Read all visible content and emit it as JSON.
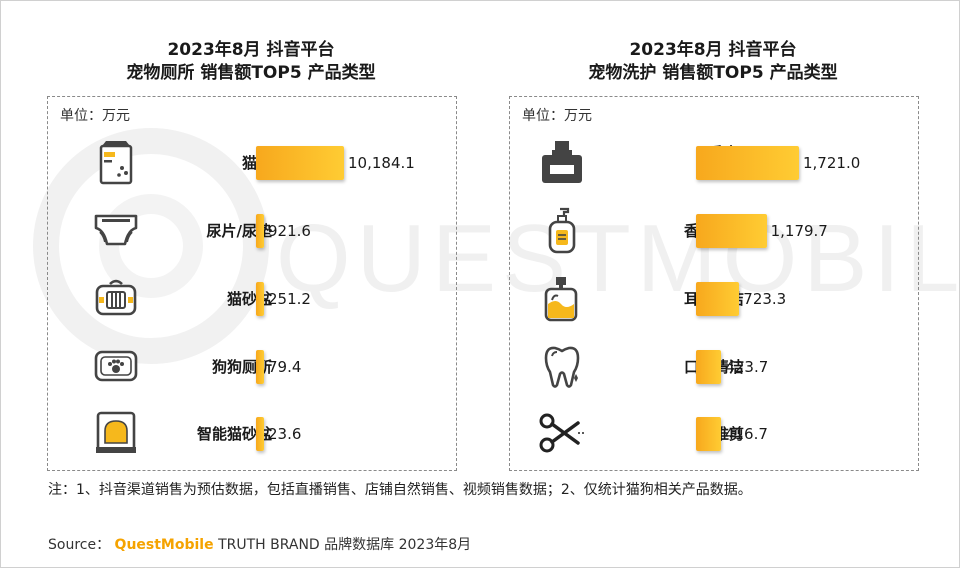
{
  "source": {
    "prefix": "Source：",
    "brand": "QuestMobile",
    "rest": "TRUTH BRAND 品牌数据库 2023年8月"
  },
  "note": "注：1、抖音渠道销售为预估数据，包括直播销售、店铺自然销售、视频销售数据；2、仅统计猫狗相关产品数据。",
  "watermark": "QUESTMOBILE",
  "colors": {
    "bar_start": "#f7a81d",
    "bar_end": "#ffcc33",
    "brand": "#f5a300"
  },
  "chart_data": [
    {
      "type": "bar",
      "orientation": "horizontal",
      "title_line1": "2023年8月 抖音平台",
      "title_line2": "宠物厕所 销售额TOP5 产品类型",
      "unit": "单位：万元",
      "categories": [
        "猫砂",
        "尿片/尿垫",
        "猫砂盆",
        "狗狗厕所",
        "智能猫砂盆"
      ],
      "values": [
        10184.1,
        921.6,
        251.2,
        79.4,
        23.6
      ],
      "value_labels": [
        "10,184.1",
        "921.6",
        "251.2",
        "79.4",
        "23.6"
      ],
      "icons": [
        "cat-litter-bag-icon",
        "diaper-icon",
        "pet-carrier-icon",
        "dog-toilet-icon",
        "smart-litter-box-icon"
      ]
    },
    {
      "type": "bar",
      "orientation": "horizontal",
      "title_line1": "2023年8月 抖音平台",
      "title_line2": "宠物洗护 销售额TOP5 产品类型",
      "unit": "单位：万元",
      "categories": [
        "香水/除味剂",
        "香波浴液",
        "耳部清洁",
        "口腔清洁",
        "电推剪"
      ],
      "category_lines": [
        [
          "香水/",
          "除味剂"
        ],
        [
          "香波浴液"
        ],
        [
          "耳部清洁"
        ],
        [
          "口腔清洁"
        ],
        [
          "电推剪"
        ]
      ],
      "values": [
        1721.0,
        1179.7,
        723.3,
        423.7,
        416.7
      ],
      "value_labels": [
        "1,721.0",
        "1,179.7",
        "723.3",
        "423.7",
        "416.7"
      ],
      "icons": [
        "perfume-bottle-icon",
        "shampoo-bottle-icon",
        "ear-cleaner-bottle-icon",
        "tooth-icon",
        "scissors-icon"
      ]
    }
  ]
}
